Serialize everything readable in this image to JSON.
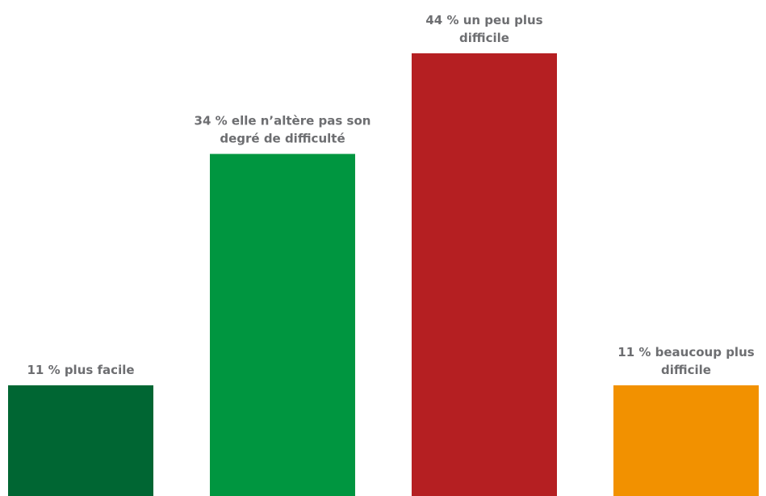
{
  "chart_data": {
    "type": "bar",
    "title": "",
    "xlabel": "",
    "ylabel": "",
    "ylim": [
      0,
      44
    ],
    "grid": false,
    "legend": "none",
    "categories": [
      "plus facile",
      "elle n’altère pas son degré de difficulté",
      "un peu plus difficile",
      "beaucoup plus difficile"
    ],
    "values": [
      11,
      34,
      44,
      11
    ],
    "labels": [
      [
        "11 % plus facile"
      ],
      [
        "34 % elle n’altère pas son",
        "degré de difficulté"
      ],
      [
        "44 % un peu plus",
        "difficile"
      ],
      [
        "11 % beaucoup plus",
        "difficile"
      ]
    ],
    "colors": [
      "#006633",
      "#009640",
      "#b51f22",
      "#f29100"
    ]
  }
}
